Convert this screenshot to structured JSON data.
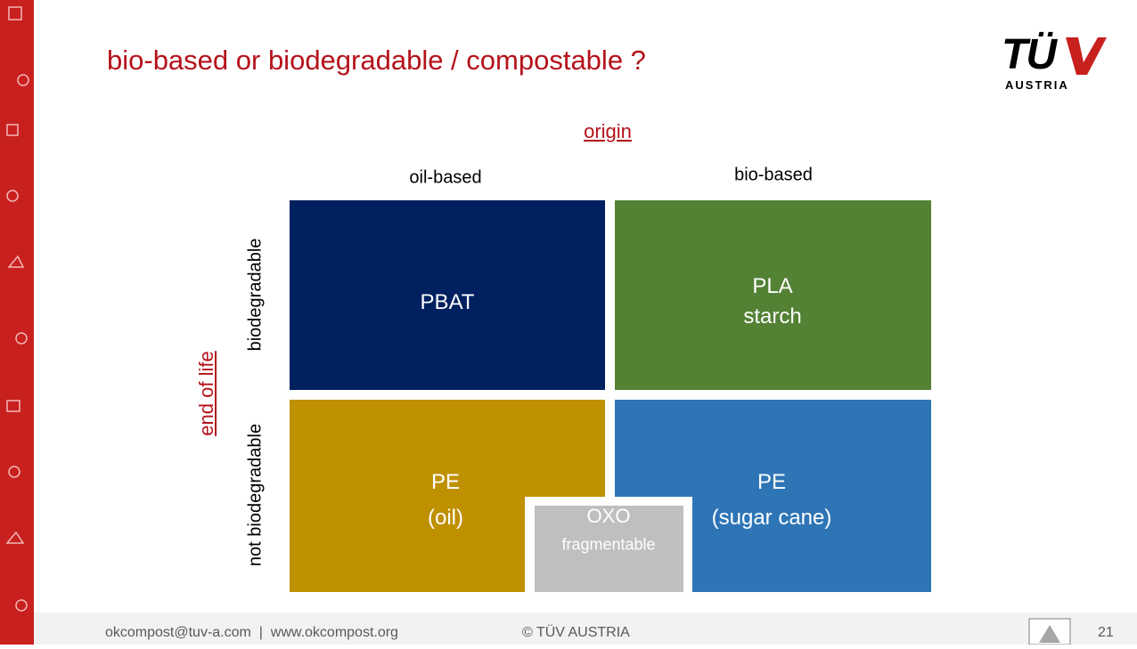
{
  "header": {
    "title": "bio-based or biodegradable / compostable ?"
  },
  "logo": {
    "brand": "TÜ",
    "sub": "AUSTRIA"
  },
  "axes": {
    "x_label": "origin",
    "y_label": "end of life"
  },
  "columns": [
    "oil-based",
    "bio-based"
  ],
  "rows": [
    "biodegradable",
    "not biodegradable"
  ],
  "cells": [
    {
      "lines": [
        "PBAT"
      ]
    },
    {
      "lines": [
        "PLA",
        "starch"
      ]
    },
    {
      "lines": [
        "PE",
        "(oil)"
      ]
    },
    {
      "lines": [
        "PE",
        "(sugar cane)"
      ]
    },
    {
      "lines": [
        "OXO",
        "fragmentable"
      ]
    }
  ],
  "footer": {
    "contact": "okcompost@tuv-a.com  |  www.okcompost.org",
    "copyright": "© TÜV AUSTRIA",
    "page": "21"
  }
}
